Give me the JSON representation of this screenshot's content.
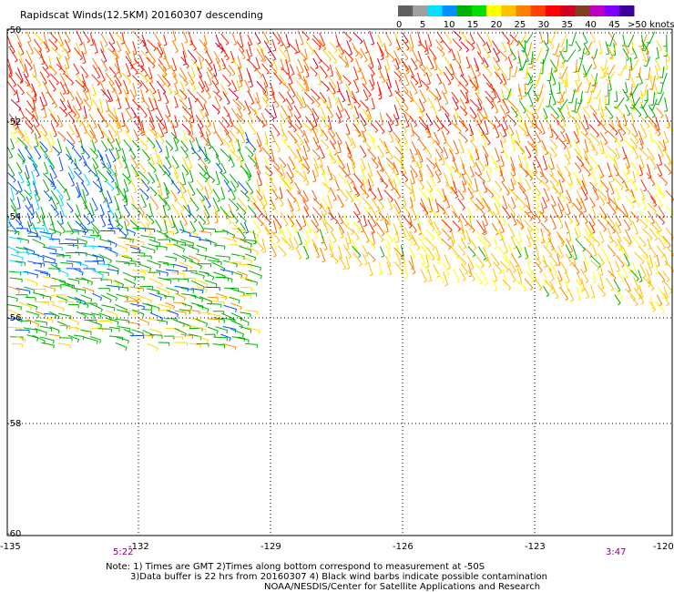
{
  "title": "Rapidscat Winds(12.5KM) 20160307 descending",
  "colorbar": {
    "unit_label": ">50 knots",
    "tick_labels": [
      "0",
      "5",
      "10",
      "15",
      "20",
      "25",
      "30",
      "35",
      "40",
      "45"
    ],
    "colors": [
      "#606060",
      "#a0a0a0",
      "#00e0ff",
      "#0090ff",
      "#00b000",
      "#00e000",
      "#ffff00",
      "#ffc000",
      "#ff8000",
      "#ff4000",
      "#ff0000",
      "#d00020",
      "#804020",
      "#c000c0",
      "#8000ff",
      "#4000a0"
    ]
  },
  "map": {
    "lat_labels": [
      "-50",
      "-52",
      "-54",
      "-56",
      "-58",
      "-60"
    ],
    "lon_labels": [
      "-135",
      "-132",
      "-129",
      "-126",
      "-123",
      "-120"
    ],
    "time_labels": [
      "5:22",
      "3:47"
    ]
  },
  "notes": {
    "line1": "Note: 1) Times are GMT 2)Times along bottom correspond to measurement at -50S",
    "line2": "3)Data buffer is 22 hrs from 20160307 4) Black wind barbs indicate possible contamination",
    "line3": "NOAA/NESDIS/Center for Satellite Applications and Research"
  }
}
